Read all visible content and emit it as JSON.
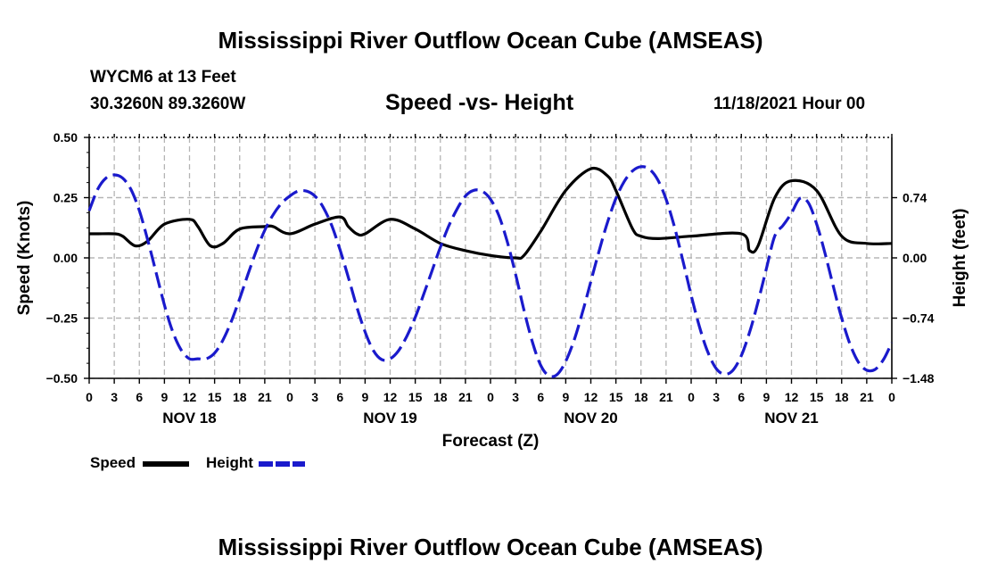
{
  "header": {
    "title": "Mississippi River Outflow Ocean Cube (AMSEAS)",
    "station": "WYCM6 at 13 Feet",
    "coordinates": "30.3260N  89.3260W",
    "subtitle": "Speed -vs- Height",
    "datetime": "11/18/2021 Hour 00"
  },
  "footer": {
    "title": "Mississippi River Outflow Ocean Cube (AMSEAS)"
  },
  "legend": {
    "speed_label": "Speed",
    "height_label": "Height",
    "speed_color": "#000000",
    "height_color": "#1a1acc"
  },
  "chart_data": {
    "type": "line",
    "xlabel": "Forecast (Z)",
    "ylabel_left": "Speed (Knots)",
    "ylabel_right": "Height (feet)",
    "x_range_hours": [
      0,
      96
    ],
    "x_tick_labels": [
      "0",
      "3",
      "6",
      "9",
      "12",
      "15",
      "18",
      "21",
      "0",
      "3",
      "6",
      "9",
      "12",
      "15",
      "18",
      "21",
      "0",
      "3",
      "6",
      "9",
      "12",
      "15",
      "18",
      "21",
      "0",
      "3",
      "6",
      "9",
      "12",
      "15",
      "18",
      "21",
      "0"
    ],
    "day_labels": [
      {
        "hour": 12,
        "label": "NOV 18"
      },
      {
        "hour": 36,
        "label": "NOV 19"
      },
      {
        "hour": 60,
        "label": "NOV 20"
      },
      {
        "hour": 84,
        "label": "NOV 21"
      }
    ],
    "ylim_left": [
      -0.5,
      0.5
    ],
    "yticks_left": [
      -0.5,
      -0.25,
      0.0,
      0.25,
      0.5
    ],
    "ytick_labels_left": [
      "-0.50",
      "-0.25",
      "0.00",
      "0.25",
      "0.50"
    ],
    "ylim_right": [
      -1.48,
      1.48
    ],
    "yticks_right": [
      -1.48,
      -0.74,
      0.0,
      0.74
    ],
    "ytick_labels_right": [
      "-1.48",
      "-0.74",
      "0.00",
      "0.74"
    ],
    "grid": true,
    "series": [
      {
        "name": "Speed",
        "axis": "left",
        "style": "solid",
        "color": "#000000",
        "x": [
          0,
          1,
          3,
          4,
          5.5,
          7,
          9,
          12,
          13,
          14.5,
          16,
          18,
          21,
          22,
          24,
          27,
          30,
          31,
          32,
          33,
          36,
          39,
          42,
          45,
          48,
          51,
          52,
          54,
          57,
          60,
          62,
          63,
          65,
          66,
          68,
          72,
          78,
          79,
          80,
          82,
          84,
          87,
          90,
          93,
          96
        ],
        "values": [
          0.1,
          0.1,
          0.1,
          0.09,
          0.05,
          0.07,
          0.14,
          0.16,
          0.13,
          0.05,
          0.06,
          0.12,
          0.13,
          0.13,
          0.1,
          0.14,
          0.17,
          0.13,
          0.1,
          0.1,
          0.16,
          0.12,
          0.06,
          0.03,
          0.01,
          0.0,
          0.01,
          0.11,
          0.28,
          0.37,
          0.34,
          0.28,
          0.12,
          0.09,
          0.08,
          0.09,
          0.1,
          0.03,
          0.05,
          0.25,
          0.32,
          0.28,
          0.09,
          0.06,
          0.06
        ]
      },
      {
        "name": "Height",
        "axis": "right",
        "style": "dashed",
        "color": "#1a1acc",
        "x": [
          0,
          1,
          2,
          3,
          4,
          5,
          6,
          7,
          8,
          9,
          10,
          11,
          12,
          13,
          14,
          15,
          16,
          17,
          18,
          19,
          20,
          21,
          22,
          23,
          24,
          25,
          26,
          27,
          28,
          29,
          30,
          31,
          32,
          33,
          34,
          35,
          36,
          37,
          38,
          39,
          40,
          41,
          42,
          43,
          44,
          45,
          46,
          47,
          48,
          49,
          50,
          51,
          52,
          53,
          54,
          55,
          56,
          57,
          58,
          59,
          60,
          61,
          62,
          63,
          64,
          65,
          66,
          67,
          68,
          69,
          70,
          71,
          72,
          73,
          74,
          75,
          76,
          77,
          78,
          79,
          80,
          81,
          82,
          83,
          84,
          85,
          86,
          87,
          88,
          89,
          90,
          91,
          92,
          93,
          94,
          95,
          96
        ],
        "values": [
          0.58,
          0.84,
          0.98,
          1.02,
          0.98,
          0.84,
          0.58,
          0.22,
          -0.18,
          -0.58,
          -0.91,
          -1.13,
          -1.24,
          -1.24,
          -1.24,
          -1.17,
          -1.01,
          -0.78,
          -0.5,
          -0.2,
          0.09,
          0.34,
          0.53,
          0.67,
          0.76,
          0.82,
          0.82,
          0.76,
          0.62,
          0.4,
          0.1,
          -0.24,
          -0.6,
          -0.91,
          -1.14,
          -1.25,
          -1.24,
          -1.14,
          -0.96,
          -0.73,
          -0.45,
          -0.16,
          0.13,
          0.39,
          0.6,
          0.76,
          0.83,
          0.82,
          0.72,
          0.52,
          0.2,
          -0.2,
          -0.64,
          -1.03,
          -1.32,
          -1.45,
          -1.43,
          -1.27,
          -1.01,
          -0.67,
          -0.29,
          0.09,
          0.44,
          0.73,
          0.94,
          1.07,
          1.12,
          1.09,
          0.96,
          0.72,
          0.38,
          -0.03,
          -0.46,
          -0.85,
          -1.16,
          -1.36,
          -1.43,
          -1.38,
          -1.2,
          -0.91,
          -0.54,
          -0.13,
          0.27,
          0.4,
          0.55,
          0.73,
          0.68,
          0.42,
          0.06,
          -0.35,
          -0.74,
          -1.06,
          -1.28,
          -1.38,
          -1.37,
          -1.25,
          -1.04
        ]
      }
    ]
  }
}
